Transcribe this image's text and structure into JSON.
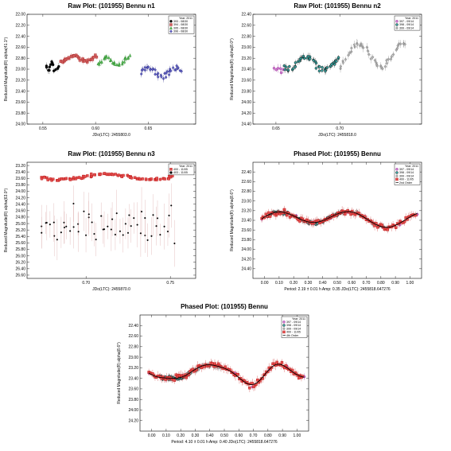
{
  "chart_data": [
    {
      "id": "p1",
      "type": "scatter",
      "title": "Raw Plot: (101955) Bennu n1",
      "ylabel": "Reduced Magnitude(R) alpha(41.1°)",
      "xlabel_prefix": "JDo(LTC):",
      "xlabel_value": "2455803.0",
      "xlim": [
        0.535,
        0.695
      ],
      "ylim": [
        22.0,
        24.0
      ],
      "y_inverted": true,
      "xticks": [
        0.55,
        0.6,
        0.65
      ],
      "xtick_labels": [
        "0.55",
        "0.60",
        "0.65"
      ],
      "yticks": [
        22.0,
        22.2,
        22.4,
        22.6,
        22.8,
        23.0,
        23.2,
        23.4,
        23.6,
        23.8,
        24.0
      ],
      "ytick_labels": [
        "22.00",
        "22.20",
        "22.40",
        "22.60",
        "22.80",
        "23.00",
        "23.20",
        "23.40",
        "23.60",
        "23.80",
        "24.00"
      ],
      "legend_year": "Year: 2011",
      "legend_position": "top-right",
      "series": [
        {
          "name": "393 - 08/30",
          "color": "#000000",
          "fill": "#000000",
          "marker": "circle",
          "x_range": [
            0.553,
            0.565
          ],
          "y_center": 22.95,
          "y_amp": 0.08,
          "y_scatter": 0.07,
          "err": 0.05,
          "count": 14
        },
        {
          "name": "394 - 08/30",
          "color": "#b03030",
          "fill": "#d06060",
          "marker": "square",
          "x_range": [
            0.567,
            0.6
          ],
          "y_center": 22.8,
          "y_amp": 0.05,
          "y_scatter": 0.05,
          "err": 0.04,
          "count": 36
        },
        {
          "name": "395 - 08/30",
          "color": "#208020",
          "fill": "#60c060",
          "marker": "triangle",
          "x_range": [
            0.602,
            0.633
          ],
          "y_center": 22.85,
          "y_amp": 0.06,
          "y_scatter": 0.06,
          "err": 0.04,
          "count": 30
        },
        {
          "name": "396 - 08/30",
          "color": "#202080",
          "fill": "#6060c0",
          "marker": "diamond",
          "x_range": [
            0.643,
            0.681
          ],
          "y_center": 23.05,
          "y_amp": 0.08,
          "y_scatter": 0.08,
          "err": 0.05,
          "count": 36
        }
      ]
    },
    {
      "id": "p2",
      "type": "scatter",
      "title": "Raw Plot: (101955) Bennu n2",
      "ylabel": "Reduced Magnitude(R) alpha(8.0°)",
      "xlabel_prefix": "JDo(LTC):",
      "xlabel_value": "2455818.0",
      "xlim": [
        0.632,
        0.764
      ],
      "ylim": [
        22.4,
        24.4
      ],
      "y_inverted": true,
      "xticks": [
        0.65,
        0.7
      ],
      "xtick_labels": [
        "0.65",
        "0.70"
      ],
      "yticks": [
        22.4,
        22.6,
        22.8,
        23.0,
        23.2,
        23.4,
        23.6,
        23.8,
        24.0,
        24.2,
        24.4
      ],
      "ytick_labels": [
        "22.40",
        "22.60",
        "22.80",
        "23.00",
        "23.20",
        "23.40",
        "23.60",
        "23.80",
        "24.00",
        "24.20",
        "24.40"
      ],
      "legend_year": "Year: 2011",
      "legend_position": "top-right",
      "series": [
        {
          "name": "397 - 09/14",
          "color": "#902090",
          "fill": "#d080d0",
          "marker": "circle",
          "x_range": [
            0.648,
            0.656
          ],
          "y_center": 23.4,
          "y_amp": 0.05,
          "y_scatter": 0.07,
          "err": 0.06,
          "count": 6
        },
        {
          "name": "398 - 09/14",
          "color": "#000000",
          "fill": "#3aa3a0",
          "marker": "circle",
          "x_range": [
            0.656,
            0.7
          ],
          "y_center": 23.28,
          "y_amp": 0.12,
          "y_scatter": 0.08,
          "err": 0.05,
          "count": 50
        },
        {
          "name": "399 - 09/14",
          "color": "#707070",
          "fill": "#b0b0b0",
          "marker": "diamond",
          "x_range": [
            0.7,
            0.752
          ],
          "y_center": 23.15,
          "y_amp": 0.22,
          "y_scatter": 0.08,
          "err": 0.06,
          "count": 44
        }
      ]
    },
    {
      "id": "p3",
      "type": "scatter",
      "title": "Raw Plot: (101955) Bennu n3",
      "ylabel": "Reduced Magnitude(R) alpha(63.0°)",
      "xlabel_prefix": "JDo(LTC):",
      "xlabel_value": "2455870.0",
      "xlim": [
        0.665,
        0.765
      ],
      "ylim": [
        23.1,
        26.7
      ],
      "y_inverted": true,
      "xticks": [
        0.7,
        0.75
      ],
      "xtick_labels": [
        "0.70",
        "0.75"
      ],
      "yticks": [
        23.2,
        23.4,
        23.6,
        23.8,
        24.0,
        24.2,
        24.4,
        24.6,
        24.8,
        25.0,
        25.2,
        25.4,
        25.6,
        25.8,
        26.0,
        26.2,
        26.4,
        26.6
      ],
      "ytick_labels": [
        "23.20",
        "23.40",
        "23.60",
        "23.80",
        "24.00",
        "24.20",
        "24.40",
        "24.60",
        "24.80",
        "25.00",
        "25.20",
        "25.40",
        "25.60",
        "25.80",
        "26.00",
        "26.20",
        "26.40",
        "26.60"
      ],
      "legend_year": "Year: 2011",
      "legend_position": "top-right",
      "series": [
        {
          "name": "400 - 11/05",
          "color": "#c01010",
          "fill": "#e05050",
          "marker": "square",
          "x_range": [
            0.673,
            0.752
          ],
          "y_center": 23.55,
          "y_amp": 0.08,
          "y_scatter": 0.06,
          "err": 0.05,
          "count": 80
        },
        {
          "name": "403 - 11/05",
          "color": "#000000",
          "fill": "#000000",
          "marker": "dot",
          "x_range": [
            0.673,
            0.752
          ],
          "y_center": 25.1,
          "y_amp": 0.0,
          "y_scatter": 0.8,
          "err": 0.55,
          "count": 55,
          "errcolor": "#d09090"
        }
      ]
    },
    {
      "id": "p4",
      "type": "scatter",
      "title": "Phased Plot: (101955) Bennu",
      "ylabel": "Reduced Magnitude(R) alpha(8.6°)",
      "footer": "Period: 2.19 ± 0.01 h    Amp: 0.35    JDo(LTC): 2455818.647276",
      "xlim": [
        -0.08,
        1.08
      ],
      "ylim": [
        22.2,
        24.6
      ],
      "y_inverted": true,
      "xticks": [
        0.0,
        0.1,
        0.2,
        0.3,
        0.4,
        0.5,
        0.6,
        0.7,
        0.8,
        0.9,
        1.0
      ],
      "xtick_labels": [
        "0.00",
        "0.10",
        "0.20",
        "0.30",
        "0.40",
        "0.50",
        "0.60",
        "0.70",
        "0.80",
        "0.90",
        "1.00"
      ],
      "yticks": [
        22.4,
        22.6,
        22.8,
        23.0,
        23.2,
        23.4,
        23.6,
        23.8,
        24.0,
        24.2,
        24.4
      ],
      "ytick_labels": [
        "22.40",
        "22.60",
        "22.80",
        "23.00",
        "23.20",
        "23.40",
        "23.60",
        "23.80",
        "24.00",
        "24.20",
        "24.40"
      ],
      "legend_year": "Year: 2011",
      "legend_position": "top-right",
      "fit": {
        "name": "2nd Order",
        "mean": 23.36,
        "terms": [
          {
            "h": 1,
            "a": 0.03,
            "b": -0.04
          },
          {
            "h": 2,
            "a": -0.06,
            "b": -0.12
          }
        ]
      },
      "series": [
        {
          "name": "397 - 09/14",
          "color": "#902090",
          "fill": "#d080d0",
          "marker": "circle",
          "x_range": [
            -0.02,
            1.05
          ],
          "count": 10,
          "y_scatter": 0.07,
          "err": 0.05
        },
        {
          "name": "398 - 09/14",
          "color": "#000000",
          "fill": "#3aa3a0",
          "marker": "circle",
          "x_range": [
            0.02,
            0.55
          ],
          "count": 55,
          "y_scatter": 0.06,
          "err": 0.04
        },
        {
          "name": "399 - 09/14",
          "color": "#707070",
          "fill": "#b0b0b0",
          "marker": "diamond",
          "x_range": [
            0.25,
            0.85
          ],
          "count": 40,
          "y_scatter": 0.06,
          "err": 0.05
        },
        {
          "name": "400 - 11/05",
          "color": "#c01010",
          "fill": "#e05050",
          "marker": "square",
          "x_range": [
            -0.02,
            1.04
          ],
          "count": 110,
          "y_scatter": 0.08,
          "err": 0.07
        }
      ]
    },
    {
      "id": "p5",
      "type": "scatter",
      "title": "Phased Plot: (101955) Bennu",
      "ylabel": "Reduced Magnitude(R) alpha(8.6°)",
      "footer": "Period: 4.10 ± 0.01 h    Amp: 0.40    JDo(LTC): 2455818.647276",
      "xlim": [
        -0.08,
        1.08
      ],
      "ylim": [
        22.2,
        24.4
      ],
      "y_inverted": true,
      "xticks": [
        0.0,
        0.1,
        0.2,
        0.3,
        0.4,
        0.5,
        0.6,
        0.7,
        0.8,
        0.9,
        1.0
      ],
      "xtick_labels": [
        "0.00",
        "0.10",
        "0.20",
        "0.30",
        "0.40",
        "0.50",
        "0.60",
        "0.70",
        "0.80",
        "0.90",
        "1.00"
      ],
      "yticks": [
        22.4,
        22.6,
        22.8,
        23.0,
        23.2,
        23.4,
        23.6,
        23.8,
        24.0,
        24.2
      ],
      "ytick_labels": [
        "22.40",
        "22.60",
        "22.80",
        "23.00",
        "23.20",
        "23.40",
        "23.60",
        "23.80",
        "24.00",
        "24.20"
      ],
      "legend_year": "Year: 2011",
      "legend_position": "top-right",
      "fit": {
        "name": "4th Order",
        "mean": 23.3,
        "terms": [
          {
            "h": 1,
            "a": 0.02,
            "b": -0.03
          },
          {
            "h": 2,
            "a": -0.05,
            "b": 0.14
          },
          {
            "h": 3,
            "a": 0.04,
            "b": 0.02
          },
          {
            "h": 4,
            "a": 0.02,
            "b": -0.02
          }
        ]
      },
      "series": [
        {
          "name": "397 - 09/14",
          "color": "#902090",
          "fill": "#d080d0",
          "marker": "circle",
          "x_range": [
            -0.02,
            1.05
          ],
          "count": 10,
          "y_scatter": 0.07,
          "err": 0.05
        },
        {
          "name": "398 - 09/14",
          "color": "#000000",
          "fill": "#3aa3a0",
          "marker": "circle",
          "x_range": [
            0.05,
            0.27
          ],
          "count": 45,
          "y_scatter": 0.06,
          "err": 0.04
        },
        {
          "name": "399 - 09/14",
          "color": "#707070",
          "fill": "#b0b0b0",
          "marker": "diamond",
          "x_range": [
            0.22,
            0.48
          ],
          "count": 40,
          "y_scatter": 0.06,
          "err": 0.05
        },
        {
          "name": "400 - 11/05",
          "color": "#c01010",
          "fill": "#e05050",
          "marker": "square",
          "x_range": [
            -0.02,
            1.04
          ],
          "count": 120,
          "y_scatter": 0.08,
          "err": 0.07
        }
      ]
    }
  ]
}
